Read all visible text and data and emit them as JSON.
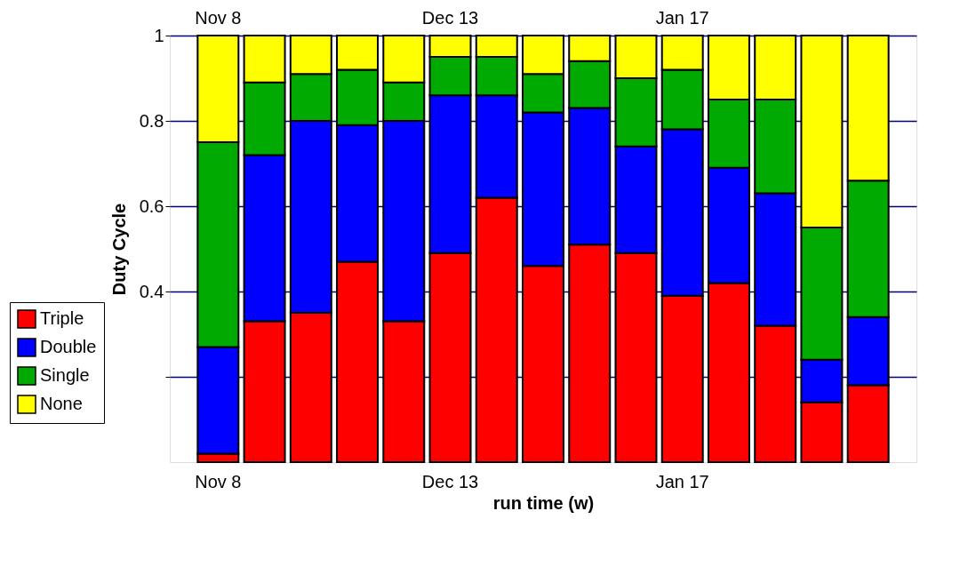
{
  "chart_data": {
    "type": "bar",
    "stacked": true,
    "xlabel": "run time (w)",
    "ylabel": "Duty Cycle",
    "categories": [
      "Nov 8",
      null,
      null,
      null,
      null,
      "Dec 13",
      null,
      null,
      null,
      null,
      "Jan 17",
      null,
      null,
      null,
      null
    ],
    "series": [
      {
        "name": "Triple",
        "color": "#ff0000",
        "values": [
          0.02,
          0.33,
          0.35,
          0.47,
          0.33,
          0.49,
          0.62,
          0.46,
          0.51,
          0.49,
          0.39,
          0.42,
          0.32,
          0.14,
          0.18
        ]
      },
      {
        "name": "Double",
        "color": "#0000ff",
        "values": [
          0.25,
          0.39,
          0.45,
          0.32,
          0.47,
          0.37,
          0.24,
          0.36,
          0.32,
          0.25,
          0.39,
          0.27,
          0.31,
          0.1,
          0.16
        ]
      },
      {
        "name": "Single",
        "color": "#00aa00",
        "values": [
          0.48,
          0.17,
          0.11,
          0.13,
          0.09,
          0.09,
          0.09,
          0.09,
          0.11,
          0.16,
          0.14,
          0.16,
          0.22,
          0.31,
          0.32
        ]
      },
      {
        "name": "None",
        "color": "#ffff00",
        "values": [
          0.25,
          0.11,
          0.09,
          0.08,
          0.11,
          0.05,
          0.05,
          0.09,
          0.06,
          0.1,
          0.08,
          0.15,
          0.15,
          0.45,
          0.34
        ]
      }
    ],
    "ylim": [
      0,
      1
    ],
    "yticks": [
      {
        "value": 0.2,
        "label": null
      },
      0.4,
      0.6,
      0.8,
      1
    ],
    "grid": "y",
    "legend": "bottom left"
  }
}
